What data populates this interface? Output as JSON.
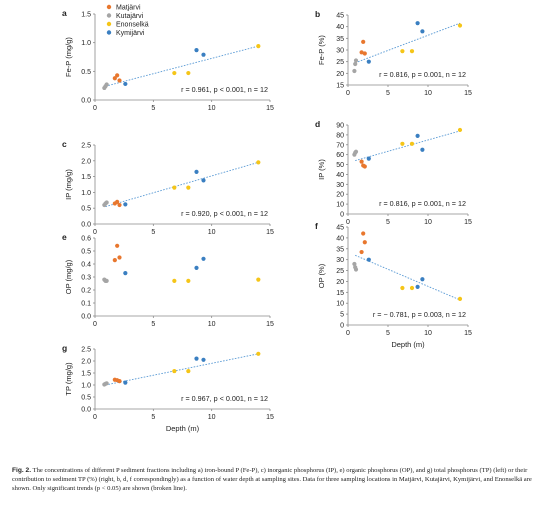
{
  "legend": [
    {
      "name": "Matjärvi",
      "color": "#e8772e"
    },
    {
      "name": "Kutajärvi",
      "color": "#a5a5a5"
    },
    {
      "name": "Enonselkä",
      "color": "#f5c518"
    },
    {
      "name": "Kymijärvi",
      "color": "#3a7fc1"
    }
  ],
  "caption": {
    "label": "Fig. 2.",
    "text": "The concentrations of different P sediment fractions including a) iron-bound P (Fe-P), c) inorganic phosphorus (IP), e) organic phosphorus (OP), and g) total phosphorus (TP) (left) or their contribution to sediment TP (%) (right, b, d, f correspondingly) as a function of water depth at sampling sites. Data for three sampling locations in Matjärvi, Kutajärvi, Kymijärvi, and Enonselkä are shown. Only significant trends (p < 0.05) are shown (broken line)."
  },
  "colors": {
    "matjarvi": "#e8772e",
    "kutajarvi": "#a5a5a5",
    "enonselka": "#f5c518",
    "kymijarvi": "#3a7fc1",
    "trendline": "#5b9bd5",
    "axis": "#8a8a8a",
    "text": "#222222"
  },
  "chart_data": [
    {
      "id": "a",
      "type": "scatter",
      "ylabel": "Fe-P (mg/g)",
      "xlabel": "",
      "xlim": [
        0,
        15
      ],
      "ylim": [
        0,
        1.5
      ],
      "xticks": [
        "0",
        "5",
        "10",
        "15"
      ],
      "yticks": [
        "0.0",
        "0.5",
        "1.0",
        "1.5"
      ],
      "annotation": "r = 0.961, p < 0.001, n = 12",
      "trend": {
        "x": [
          0.9,
          14
        ],
        "y": [
          0.24,
          0.94
        ]
      },
      "series": [
        {
          "name": "Matjärvi",
          "x": [
            1.7,
            1.9,
            2.1
          ],
          "y": [
            0.38,
            0.43,
            0.34
          ]
        },
        {
          "name": "Kutajärvi",
          "x": [
            0.8,
            0.9,
            1.0
          ],
          "y": [
            0.21,
            0.24,
            0.27
          ]
        },
        {
          "name": "Enonselkä",
          "x": [
            6.8,
            8.0,
            14.0
          ],
          "y": [
            0.47,
            0.47,
            0.94
          ]
        },
        {
          "name": "Kymijärvi",
          "x": [
            2.6,
            8.7,
            9.3
          ],
          "y": [
            0.28,
            0.87,
            0.79
          ]
        }
      ]
    },
    {
      "id": "b",
      "type": "scatter",
      "ylabel": "Fe-P (%)",
      "xlabel": "",
      "xlim": [
        0,
        15
      ],
      "ylim": [
        15,
        45
      ],
      "xticks": [
        "0",
        "5",
        "10",
        "15"
      ],
      "yticks": [
        "15",
        "20",
        "25",
        "30",
        "35",
        "40",
        "45"
      ],
      "annotation": "r = 0.816, p = 0.001, n = 12",
      "trend": {
        "x": [
          0.9,
          14
        ],
        "y": [
          24.5,
          41.5
        ]
      },
      "series": [
        {
          "name": "Matjärvi",
          "x": [
            1.7,
            1.9,
            2.1
          ],
          "y": [
            29,
            33.5,
            28.5
          ]
        },
        {
          "name": "Kutajärvi",
          "x": [
            0.8,
            0.9,
            1.0
          ],
          "y": [
            21,
            24,
            25.5
          ]
        },
        {
          "name": "Enonselkä",
          "x": [
            6.8,
            8.0,
            14.0
          ],
          "y": [
            29.5,
            29.5,
            40.5
          ]
        },
        {
          "name": "Kymijärvi",
          "x": [
            2.6,
            8.7,
            9.3
          ],
          "y": [
            25,
            41.5,
            38
          ]
        }
      ]
    },
    {
      "id": "c",
      "type": "scatter",
      "ylabel": "IP (mg/g)",
      "xlabel": "",
      "xlim": [
        0,
        15
      ],
      "ylim": [
        0,
        2.5
      ],
      "xticks": [
        "0",
        "5",
        "10",
        "15"
      ],
      "yticks": [
        "0.0",
        "0.5",
        "1.0",
        "1.5",
        "2.0",
        "2.5"
      ],
      "annotation": "r = 0.920, p < 0.001, n = 12",
      "trend": {
        "x": [
          0.9,
          14
        ],
        "y": [
          0.55,
          1.95
        ]
      },
      "series": [
        {
          "name": "Matjärvi",
          "x": [
            1.7,
            1.9,
            2.1
          ],
          "y": [
            0.65,
            0.7,
            0.6
          ]
        },
        {
          "name": "Kutajärvi",
          "x": [
            0.8,
            0.9,
            1.0
          ],
          "y": [
            0.6,
            0.65,
            0.68
          ]
        },
        {
          "name": "Enonselkä",
          "x": [
            6.8,
            8.0,
            14.0
          ],
          "y": [
            1.15,
            1.15,
            1.95
          ]
        },
        {
          "name": "Kymijärvi",
          "x": [
            2.6,
            8.7,
            9.3
          ],
          "y": [
            0.62,
            1.65,
            1.38
          ]
        }
      ]
    },
    {
      "id": "d",
      "type": "scatter",
      "ylabel": "IP (%)",
      "xlabel": "",
      "xlim": [
        0,
        15
      ],
      "ylim": [
        0,
        90
      ],
      "xticks": [
        "0",
        "5",
        "10",
        "15"
      ],
      "yticks": [
        "0",
        "10",
        "20",
        "30",
        "40",
        "50",
        "60",
        "70",
        "80",
        "90"
      ],
      "annotation": "r = 0.816, p = 0.001, n = 12",
      "trend": {
        "x": [
          0.9,
          14
        ],
        "y": [
          54,
          84
        ]
      },
      "series": [
        {
          "name": "Matjärvi",
          "x": [
            1.7,
            1.9,
            2.1
          ],
          "y": [
            53,
            49,
            48
          ]
        },
        {
          "name": "Kutajärvi",
          "x": [
            0.8,
            0.9,
            1.0
          ],
          "y": [
            60,
            62,
            63
          ]
        },
        {
          "name": "Enonselkä",
          "x": [
            6.8,
            8.0,
            14.0
          ],
          "y": [
            71,
            71,
            85
          ]
        },
        {
          "name": "Kymijärvi",
          "x": [
            2.6,
            8.7,
            9.3
          ],
          "y": [
            56,
            79,
            65
          ]
        }
      ]
    },
    {
      "id": "e",
      "type": "scatter",
      "ylabel": "OP (mg/g)",
      "xlabel": "",
      "xlim": [
        0,
        15
      ],
      "ylim": [
        0,
        0.6
      ],
      "xticks": [
        "0",
        "5",
        "10",
        "15"
      ],
      "yticks": [
        "0.0",
        "0.1",
        "0.2",
        "0.3",
        "0.4",
        "0.5",
        "0.6"
      ],
      "annotation": "",
      "trend": null,
      "series": [
        {
          "name": "Matjärvi",
          "x": [
            1.7,
            1.9,
            2.1
          ],
          "y": [
            0.43,
            0.54,
            0.45
          ]
        },
        {
          "name": "Kutajärvi",
          "x": [
            0.8,
            0.9,
            1.0
          ],
          "y": [
            0.28,
            0.27,
            0.27
          ]
        },
        {
          "name": "Enonselkä",
          "x": [
            6.8,
            8.0,
            14.0
          ],
          "y": [
            0.27,
            0.27,
            0.28
          ]
        },
        {
          "name": "Kymijärvi",
          "x": [
            2.6,
            8.7,
            9.3
          ],
          "y": [
            0.33,
            0.37,
            0.44
          ]
        }
      ]
    },
    {
      "id": "f",
      "type": "scatter",
      "ylabel": "OP (%)",
      "xlabel": "Depth (m)",
      "xlim": [
        0,
        15
      ],
      "ylim": [
        0,
        45
      ],
      "xticks": [
        "0",
        "5",
        "10",
        "15"
      ],
      "yticks": [
        "0",
        "5",
        "10",
        "15",
        "20",
        "25",
        "30",
        "35",
        "40",
        "45"
      ],
      "annotation": "r = − 0.781, p = 0.003, n = 12",
      "trend": {
        "x": [
          0.9,
          14
        ],
        "y": [
          32,
          11.5
        ]
      },
      "series": [
        {
          "name": "Matjärvi",
          "x": [
            1.7,
            1.9,
            2.1
          ],
          "y": [
            33.5,
            42,
            38
          ]
        },
        {
          "name": "Kutajärvi",
          "x": [
            0.8,
            0.9,
            1.0
          ],
          "y": [
            28,
            26.5,
            25.5
          ]
        },
        {
          "name": "Enonselkä",
          "x": [
            6.8,
            8.0,
            14.0
          ],
          "y": [
            17,
            17,
            12
          ]
        },
        {
          "name": "Kymijärvi",
          "x": [
            2.6,
            8.7,
            9.3
          ],
          "y": [
            30,
            17.5,
            21
          ]
        }
      ]
    },
    {
      "id": "g",
      "type": "scatter",
      "ylabel": "TP (mg/g)",
      "xlabel": "Depth (m)",
      "xlim": [
        0,
        15
      ],
      "ylim": [
        0,
        2.5
      ],
      "xticks": [
        "0",
        "5",
        "10",
        "15"
      ],
      "yticks": [
        "0.0",
        "0.5",
        "1.0",
        "1.5",
        "2.0",
        "2.5"
      ],
      "annotation": "r = 0.967, p < 0.001, n = 12",
      "trend": {
        "x": [
          0.9,
          14
        ],
        "y": [
          1.0,
          2.3
        ]
      },
      "series": [
        {
          "name": "Matjärvi",
          "x": [
            1.7,
            1.9,
            2.1
          ],
          "y": [
            1.22,
            1.2,
            1.16
          ]
        },
        {
          "name": "Kutajärvi",
          "x": [
            0.8,
            0.9,
            1.0
          ],
          "y": [
            1.02,
            1.05,
            1.07
          ]
        },
        {
          "name": "Enonselkä",
          "x": [
            6.8,
            8.0,
            14.0
          ],
          "y": [
            1.58,
            1.58,
            2.3
          ]
        },
        {
          "name": "Kymijärvi",
          "x": [
            2.6,
            8.7,
            9.3
          ],
          "y": [
            1.1,
            2.1,
            2.05
          ]
        }
      ]
    }
  ]
}
